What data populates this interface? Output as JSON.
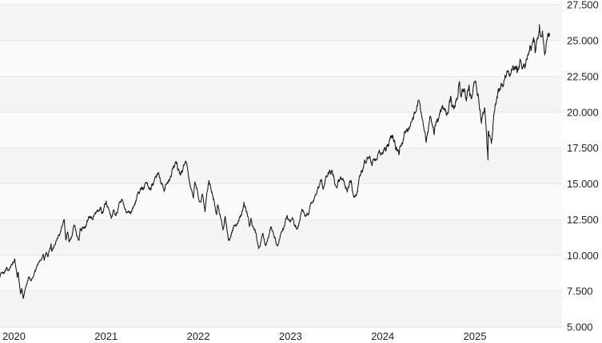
{
  "chart_data": {
    "type": "line",
    "title": "",
    "y_axis_side": "right",
    "number_format": "dot-thousands",
    "grid": "horizontal",
    "alternating_bands": true,
    "y_tick_labels": [
      "27.500",
      "25.000",
      "22.500",
      "20.000",
      "17.500",
      "15.000",
      "12.500",
      "10.000",
      "7.500",
      "5.000"
    ],
    "y_tick_values": [
      27500,
      25000,
      22500,
      20000,
      17500,
      15000,
      12500,
      10000,
      7500,
      5000
    ],
    "ylim": [
      5000,
      27500
    ],
    "x_tick_labels": [
      "2020",
      "2021",
      "2022",
      "2023",
      "2024",
      "2025"
    ],
    "x_tick_positions_years": [
      0,
      1,
      2,
      3,
      4,
      5
    ],
    "x_unit": "years_since_2020_jan",
    "points": [
      [
        -0.05,
        8600
      ],
      [
        0.003,
        8770
      ],
      [
        0.046,
        9170
      ],
      [
        0.074,
        8950
      ],
      [
        0.112,
        9520
      ],
      [
        0.135,
        9718
      ],
      [
        0.161,
        8460
      ],
      [
        0.172,
        8830
      ],
      [
        0.197,
        7310
      ],
      [
        0.21,
        7700
      ],
      [
        0.226,
        6994
      ],
      [
        0.286,
        8515
      ],
      [
        0.306,
        8235
      ],
      [
        0.379,
        9331
      ],
      [
        0.442,
        10095
      ],
      [
        0.455,
        9663
      ],
      [
        0.479,
        10185
      ],
      [
        0.493,
        9900
      ],
      [
        0.528,
        10824
      ],
      [
        0.534,
        10306
      ],
      [
        0.59,
        11055
      ],
      [
        0.672,
        12420
      ],
      [
        0.688,
        11068
      ],
      [
        0.707,
        11632
      ],
      [
        0.723,
        10936
      ],
      [
        0.781,
        12088
      ],
      [
        0.83,
        11052
      ],
      [
        0.845,
        11890
      ],
      [
        0.858,
        11713
      ],
      [
        0.94,
        12680
      ],
      [
        0.999,
        12888
      ],
      [
        1.066,
        13366
      ],
      [
        1.077,
        12925
      ],
      [
        1.126,
        13807
      ],
      [
        1.181,
        12609
      ],
      [
        1.2,
        13082
      ],
      [
        1.228,
        12780
      ],
      [
        1.29,
        13845
      ],
      [
        1.361,
        13002
      ],
      [
        1.494,
        14555
      ],
      [
        1.565,
        15110
      ],
      [
        1.63,
        14895
      ],
      [
        1.682,
        15675
      ],
      [
        1.756,
        14472
      ],
      [
        1.814,
        15335
      ],
      [
        1.883,
        16573
      ],
      [
        1.921,
        15712
      ],
      [
        1.987,
        16567
      ],
      [
        2.072,
        14003
      ],
      [
        2.088,
        15139
      ],
      [
        2.148,
        13750
      ],
      [
        2.167,
        14285
      ],
      [
        2.198,
        13046
      ],
      [
        2.239,
        15239
      ],
      [
        2.324,
        12855
      ],
      [
        2.338,
        13535
      ],
      [
        2.393,
        11769
      ],
      [
        2.417,
        12720
      ],
      [
        2.455,
        11037
      ],
      [
        2.62,
        13720
      ],
      [
        2.68,
        12012
      ],
      [
        2.697,
        12602
      ],
      [
        2.781,
        10480
      ],
      [
        2.823,
        11546
      ],
      [
        2.857,
        10681
      ],
      [
        2.917,
        12002
      ],
      [
        2.99,
        10679
      ],
      [
        3.088,
        12803
      ],
      [
        3.196,
        11830
      ],
      [
        3.254,
        13148
      ],
      [
        3.318,
        12806
      ],
      [
        3.458,
        15284
      ],
      [
        3.485,
        14689
      ],
      [
        3.548,
        15932
      ],
      [
        3.63,
        14694
      ],
      [
        3.668,
        15490
      ],
      [
        3.74,
        14423
      ],
      [
        3.781,
        15205
      ],
      [
        3.819,
        14058
      ],
      [
        3.967,
        16811
      ],
      [
        4.011,
        16306
      ],
      [
        4.142,
        17480
      ],
      [
        4.222,
        18339
      ],
      [
        4.301,
        17037
      ],
      [
        4.373,
        18558
      ],
      [
        4.466,
        19908
      ],
      [
        4.526,
        20675
      ],
      [
        4.597,
        17895
      ],
      [
        4.643,
        19721
      ],
      [
        4.684,
        18421
      ],
      [
        4.788,
        20271
      ],
      [
        4.834,
        19890
      ],
      [
        4.864,
        21117
      ],
      [
        4.875,
        20394
      ],
      [
        4.959,
        22133
      ],
      [
        4.97,
        21289
      ],
      [
        5.014,
        21611
      ],
      [
        5.033,
        20785
      ],
      [
        5.063,
        21900
      ],
      [
        5.071,
        21127
      ],
      [
        5.134,
        22175
      ],
      [
        5.197,
        19225
      ],
      [
        5.23,
        20287
      ],
      [
        5.268,
        16670
      ],
      [
        5.271,
        18690
      ],
      [
        5.304,
        17808
      ],
      [
        5.334,
        19960
      ],
      [
        5.361,
        20868
      ],
      [
        5.495,
        22679
      ],
      [
        5.58,
        23218
      ],
      [
        5.583,
        22763
      ],
      [
        5.616,
        23700
      ],
      [
        5.632,
        23270
      ],
      [
        5.67,
        23237
      ],
      [
        5.726,
        24626
      ],
      [
        5.734,
        24304
      ],
      [
        5.772,
        24920
      ],
      [
        5.778,
        24221
      ],
      [
        5.826,
        26117
      ],
      [
        5.843,
        25296
      ],
      [
        5.859,
        25680
      ],
      [
        5.868,
        25049
      ],
      [
        5.888,
        24100
      ],
      [
        5.907,
        25080
      ],
      [
        5.918,
        25474
      ],
      [
        5.925,
        25280
      ],
      [
        5.935,
        25320
      ]
    ]
  },
  "colors": {
    "background": "#ffffff",
    "band_dark": "#f4f4f5",
    "band_light": "#fafafb",
    "gridline": "#e7e7e8",
    "axis_line": "#dedede",
    "line": "#151515",
    "label": "#1f1f1f"
  }
}
